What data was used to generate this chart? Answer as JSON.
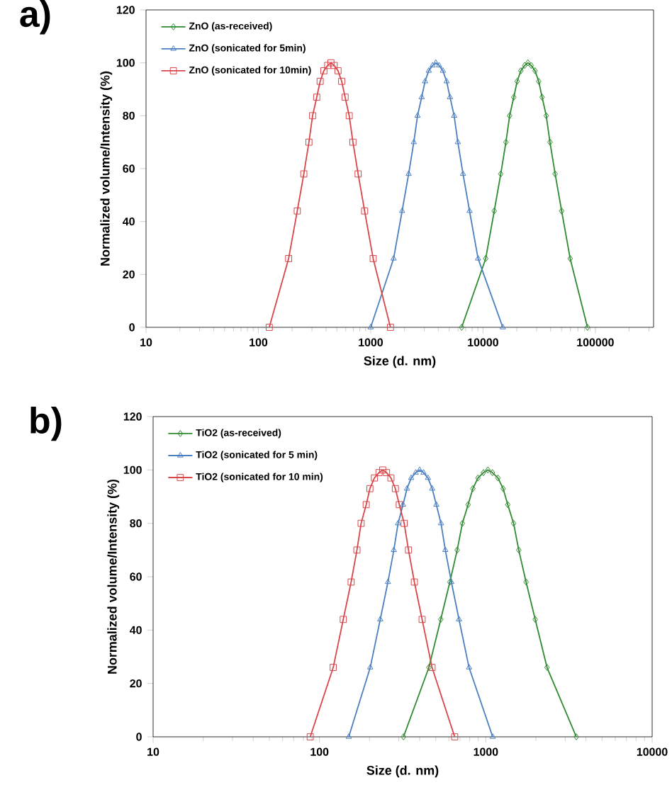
{
  "chart_data": [
    {
      "type": "line",
      "title": "a)",
      "xlabel": "Size (d. nm)",
      "ylabel": "Normalized volume/Intensity (%)",
      "log": "x",
      "legend": "top left",
      "grid": false,
      "xlim": [
        10,
        330000
      ],
      "xticks": [
        10,
        100,
        1000,
        10000,
        100000
      ],
      "ylim": [
        0,
        120
      ],
      "yticks": [
        0,
        20,
        40,
        60,
        80,
        100,
        120
      ],
      "series": [
        {
          "name": "ZnO (as-received)",
          "color": "#2e8b2e",
          "marker": "diamond",
          "x": [
            6457,
            10570,
            12590,
            14390,
            16000,
            17260,
            18790,
            20140,
            21730,
            23500,
            25120,
            26850,
            29040,
            31330,
            33570,
            36560,
            39450,
            43850,
            50120,
            59700,
            85110
          ],
          "values": [
            0,
            26,
            44,
            58,
            70,
            80,
            87,
            93,
            97,
            99,
            100,
            99,
            97,
            93,
            87,
            80,
            70,
            58,
            44,
            26,
            0
          ]
        },
        {
          "name": "ZnO (sonicated for 5min)",
          "color": "#4a7fc1",
          "marker": "triangle",
          "x": [
            1000,
            1600,
            1905,
            2178,
            2421,
            2612,
            2844,
            3048,
            3289,
            3556,
            3802,
            4064,
            4395,
            4742,
            5082,
            5534,
            5970,
            6637,
            7586,
            9036,
            15000
          ],
          "values": [
            0,
            26,
            44,
            58,
            70,
            80,
            87,
            93,
            97,
            99,
            100,
            99,
            97,
            93,
            87,
            80,
            70,
            58,
            44,
            26,
            0
          ]
        },
        {
          "name": "ZnO (sonicated for 10min)",
          "color": "#d9454a",
          "marker": "square",
          "x": [
            125,
            186,
            222,
            254,
            282,
            304,
            331,
            355,
            383,
            414,
            443,
            473,
            512,
            552,
            592,
            644,
            695,
            773,
            883,
            1052,
            1500
          ],
          "values": [
            0,
            26,
            44,
            58,
            70,
            80,
            87,
            93,
            97,
            99,
            100,
            99,
            97,
            93,
            87,
            80,
            70,
            58,
            44,
            26,
            0
          ]
        }
      ]
    },
    {
      "type": "line",
      "title": "b)",
      "xlabel": "Size (d. nm)",
      "ylabel": "Normalized volume/Intensity (%)",
      "log": "x",
      "legend": "top left",
      "grid": false,
      "xlim": [
        10,
        10000
      ],
      "xticks": [
        10,
        100,
        1000,
        10000
      ],
      "ylim": [
        0,
        120
      ],
      "yticks": [
        0,
        20,
        40,
        60,
        80,
        100,
        120
      ],
      "series": [
        {
          "name": "TiO2 (as-received)",
          "color": "#2e8b2e",
          "marker": "diamond",
          "x": [
            320,
            455,
            536,
            608,
            673,
            723,
            783,
            836,
            897,
            968,
            1030,
            1096,
            1183,
            1271,
            1355,
            1469,
            1578,
            1746,
            1982,
            2333,
            3500
          ],
          "values": [
            0,
            26,
            44,
            58,
            70,
            80,
            87,
            93,
            97,
            99,
            100,
            99,
            97,
            93,
            87,
            80,
            70,
            58,
            44,
            26,
            0
          ]
        },
        {
          "name": "TiO2 (sonicated for 5 min)",
          "color": "#4a7fc1",
          "marker": "triangle",
          "x": [
            150,
            202,
            232,
            258,
            280,
            297,
            318,
            336,
            356,
            379,
            400,
            422,
            449,
            476,
            504,
            538,
            571,
            621,
            690,
            793,
            1100
          ],
          "values": [
            0,
            26,
            44,
            58,
            70,
            80,
            87,
            93,
            97,
            99,
            100,
            99,
            97,
            93,
            87,
            80,
            70,
            58,
            44,
            26,
            0
          ]
        },
        {
          "name": "TiO2 (sonicated for 10 min)",
          "color": "#d9454a",
          "marker": "square",
          "x": [
            88,
            121,
            139,
            155,
            168,
            178,
            191,
            201,
            214,
            228,
            240,
            253,
            269,
            286,
            302,
            323,
            343,
            372,
            414,
            475,
            650
          ],
          "values": [
            0,
            26,
            44,
            58,
            70,
            80,
            87,
            93,
            97,
            99,
            100,
            99,
            97,
            93,
            87,
            80,
            70,
            58,
            44,
            26,
            0
          ]
        }
      ]
    }
  ]
}
